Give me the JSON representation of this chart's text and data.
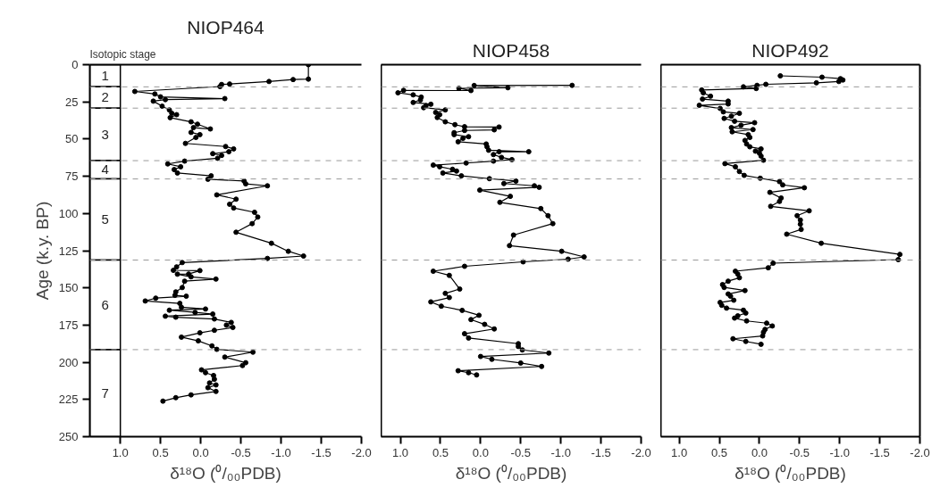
{
  "chart_data": [
    {
      "type": "line",
      "title": "NIOP464",
      "xlabel": "δ¹⁸O (⁰/₀₀PDB)",
      "ylabel": "Age (k.y. BP)",
      "annotations": [
        "Isotopic stage"
      ],
      "xlim": [
        1.38,
        -2.0
      ],
      "ylim": [
        250,
        0
      ],
      "xticks": [
        {
          "value": 1,
          "label": "1.0"
        },
        0.5,
        {
          "value": 0,
          "label": "0.0"
        },
        -0.5,
        {
          "value": -1,
          "label": "-1.0"
        },
        -1.5,
        {
          "value": -2,
          "label": "-2.0"
        }
      ],
      "yticks": [
        0,
        25,
        50,
        75,
        100,
        125,
        150,
        175,
        200,
        225,
        250
      ],
      "marker": "circle",
      "line_style": "solid",
      "series": [
        {
          "color": "#000000",
          "x": [
            -1.34,
            -1.34,
            -1.15,
            -0.85,
            -0.36,
            -0.26,
            -0.24,
            0.82,
            0.57,
            0.5,
            -0.3,
            0.44,
            0.59,
            0.48,
            0.39,
            0.36,
            0.3,
            0.38,
            0.12,
            0.04,
            -0.12,
            0.09,
            0.12,
            0.01,
            0.06,
            0.19,
            -0.31,
            -0.41,
            -0.35,
            -0.15,
            -0.26,
            -0.21,
            0.2,
            0.41,
            0.25,
            0.33,
            0.29,
            -0.13,
            -0.09,
            -0.54,
            -0.56,
            -0.83,
            -0.2,
            -0.44,
            -0.36,
            -0.41,
            -0.67,
            -0.71,
            -0.64,
            -0.44,
            -0.88,
            -1.09,
            -1.28,
            -0.83,
            0.23,
            0.3,
            0.34,
            0.01,
            0.15,
            0.29,
            0.12,
            -0.19,
            0.2,
            0.23,
            0.31,
            0.32,
            0.18,
            0.56,
            0.69,
            0.26,
            0.24,
            -0.06,
            0.39,
            0.07,
            -0.15,
            0.44,
            0.31,
            -0.17,
            -0.38,
            -0.32,
            -0.4,
            -0.17,
            0.01,
            0.24,
            0.03,
            -0.14,
            -0.2,
            -0.65,
            -0.3,
            -0.56,
            -0.52,
            -0.01,
            -0.06,
            -0.16,
            -0.17,
            -0.11,
            -0.19,
            -0.09,
            -0.19,
            0.12,
            0.31,
            0.47
          ],
          "values": [
            0,
            9.7,
            10,
            11.3,
            13,
            13.3,
            14.7,
            18,
            19.7,
            21.6,
            22.8,
            23.5,
            24.5,
            27.9,
            30.4,
            32.7,
            33.6,
            35.6,
            38.4,
            40,
            43.2,
            42.3,
            45.5,
            47,
            48.9,
            52.9,
            55,
            56.6,
            58.5,
            59.8,
            61,
            62.9,
            64.8,
            66.7,
            68.6,
            70.5,
            72.8,
            74.7,
            77,
            78.2,
            80.1,
            81.4,
            87.5,
            90.4,
            93.8,
            96.3,
            99.2,
            102.4,
            106.8,
            112.6,
            120,
            125.4,
            128.6,
            130.2,
            133,
            135.9,
            138.2,
            138.4,
            140.7,
            140.8,
            142.6,
            144.1,
            145.5,
            149.8,
            152.7,
            155,
            155.6,
            156.9,
            158.8,
            160.4,
            163,
            164.2,
            165,
            166.5,
            167.6,
            169,
            169.7,
            170.9,
            173.2,
            175,
            176.6,
            178.5,
            180.2,
            183.1,
            185.6,
            189,
            191.3,
            193.2,
            196.5,
            200.3,
            202.2,
            205.1,
            207,
            208.9,
            211.4,
            213.9,
            215.2,
            217.1,
            219.6,
            221.9,
            223.8,
            226.1
          ]
        }
      ],
      "bands": [
        {
          "axis": "y",
          "from": 0,
          "to": 14.9,
          "label": "1"
        },
        {
          "axis": "y",
          "from": 14.9,
          "to": 29.2,
          "label": "2"
        },
        {
          "axis": "y",
          "from": 29.2,
          "to": 64.5,
          "label": "3"
        },
        {
          "axis": "y",
          "from": 64.5,
          "to": 76.8,
          "label": "4"
        },
        {
          "axis": "y",
          "from": 76.8,
          "to": 131.3,
          "label": "5"
        },
        {
          "axis": "y",
          "from": 131.3,
          "to": 191.5,
          "label": "6"
        },
        {
          "axis": "y",
          "from": 191.5,
          "to": 250,
          "label": "7"
        }
      ],
      "ref_lines": [
        {
          "axis": "y",
          "value": 14.9,
          "color": "#999999",
          "line_style": "dashed"
        },
        {
          "axis": "y",
          "value": 29.2,
          "color": "#999999",
          "line_style": "dashed"
        },
        {
          "axis": "y",
          "value": 64.5,
          "color": "#999999",
          "line_style": "dashed"
        },
        {
          "axis": "y",
          "value": 76.8,
          "color": "#999999",
          "line_style": "dashed"
        },
        {
          "axis": "y",
          "value": 131.3,
          "color": "#999999",
          "line_style": "dashed"
        },
        {
          "axis": "y",
          "value": 191.5,
          "color": "#999999",
          "line_style": "dashed"
        }
      ]
    },
    {
      "type": "line",
      "title": "NIOP458",
      "xlabel": "δ¹⁸O (⁰/₀₀PDB)",
      "tick_labels": "x",
      "xlim": [
        1.24,
        -2.0
      ],
      "ylim": [
        250,
        0
      ],
      "xticks": [
        {
          "value": 1,
          "label": "1.0"
        },
        0.5,
        {
          "value": 0,
          "label": "0.0"
        },
        -0.5,
        {
          "value": -1,
          "label": "-1.0"
        },
        -1.5,
        {
          "value": -2,
          "label": "-2.0"
        }
      ],
      "yticks": [
        0,
        25,
        50,
        75,
        100,
        125,
        150,
        175,
        200,
        225,
        250
      ],
      "marker": "circle",
      "line_style": "solid",
      "series": [
        {
          "color": "#000000",
          "x": [
            -1.14,
            0.08,
            -0.34,
            0.27,
            0.12,
            0.96,
            1.03,
            0.84,
            0.74,
            0.75,
            0.84,
            0.62,
            0.68,
            0.71,
            0.44,
            0.56,
            0.51,
            0.54,
            0.44,
            0.32,
            0.2,
            -0.23,
            -0.17,
            0.2,
            0.33,
            0.33,
            0.15,
            0.22,
            0.28,
            -0.07,
            -0.08,
            -0.1,
            -0.6,
            -0.23,
            -0.16,
            -0.26,
            -0.39,
            -0.16,
            0.18,
            0.59,
            0.51,
            0.35,
            0.3,
            0.47,
            0.24,
            -0.11,
            -0.44,
            -0.29,
            -0.67,
            -0.73,
            0.01,
            -0.37,
            -0.24,
            -0.75,
            -0.84,
            -0.9,
            -0.41,
            -0.36,
            -1.01,
            -1.29,
            -1.09,
            -0.53,
            0.2,
            0.59,
            0.39,
            0.26,
            0.44,
            0.39,
            0.62,
            0.49,
            0.23,
            0.02,
            0.12,
            -0.05,
            -0.17,
            0.2,
            0.15,
            -0.47,
            -0.47,
            -0.52,
            -0.85,
            0.0,
            -0.14,
            -0.5,
            -0.76,
            0.28,
            0.15,
            0.05
          ],
          "values": [
            13.9,
            14,
            15.5,
            15.9,
            17.4,
            17.3,
            18.9,
            20.3,
            21.8,
            23.7,
            25.4,
            26.6,
            27.5,
            28.9,
            30.4,
            32.1,
            33.6,
            35.5,
            38.4,
            40.3,
            41.7,
            41.9,
            43.8,
            44.2,
            45.7,
            47,
            48.4,
            49.5,
            51.8,
            53.3,
            55.2,
            57.5,
            58.5,
            58.5,
            60.4,
            62.3,
            63.8,
            64.8,
            66.1,
            67.5,
            68.6,
            70.3,
            71.5,
            72.8,
            74.7,
            76.6,
            78.2,
            79.9,
            81.4,
            82.4,
            84.3,
            88.5,
            92.5,
            96.7,
            101.5,
            106.8,
            114.5,
            121.6,
            125.4,
            129.2,
            130.7,
            132.5,
            135.5,
            138.8,
            141.6,
            150.8,
            153.7,
            156.5,
            159.4,
            162.3,
            165.1,
            168.4,
            171.3,
            174.5,
            177.6,
            180.8,
            183.7,
            187.5,
            189.4,
            191.7,
            193.8,
            196.1,
            198,
            200.5,
            202.8,
            205.7,
            207,
            208.5
          ]
        }
      ],
      "ref_lines": [
        {
          "axis": "y",
          "value": 14.9,
          "color": "#999999",
          "line_style": "dashed"
        },
        {
          "axis": "y",
          "value": 29.2,
          "color": "#999999",
          "line_style": "dashed"
        },
        {
          "axis": "y",
          "value": 64.5,
          "color": "#999999",
          "line_style": "dashed"
        },
        {
          "axis": "y",
          "value": 76.8,
          "color": "#999999",
          "line_style": "dashed"
        },
        {
          "axis": "y",
          "value": 131.3,
          "color": "#999999",
          "line_style": "dashed"
        },
        {
          "axis": "y",
          "value": 191.5,
          "color": "#999999",
          "line_style": "dashed"
        }
      ]
    },
    {
      "type": "line",
      "title": "NIOP492",
      "xlabel": "δ¹⁸O (⁰/₀₀PDB)",
      "tick_labels": "x",
      "xlim": [
        1.23,
        -2.0
      ],
      "ylim": [
        250,
        0
      ],
      "xticks": [
        {
          "value": 1,
          "label": "1.0"
        },
        0.5,
        {
          "value": 0,
          "label": "0.0"
        },
        -0.5,
        {
          "value": -1,
          "label": "-1.0"
        },
        -1.5,
        {
          "value": -2,
          "label": "-2.0"
        }
      ],
      "yticks": [
        0,
        25,
        50,
        75,
        100,
        125,
        150,
        175,
        200,
        225,
        250
      ],
      "marker": "circle",
      "line_style": "solid",
      "series": [
        {
          "color": "#000000",
          "x": [
            -0.26,
            -0.78,
            -1.01,
            -1.04,
            -0.99,
            -0.71,
            -0.08,
            0.03,
            0.2,
            0.04,
            0.72,
            0.7,
            0.61,
            0.71,
            0.39,
            0.39,
            0.75,
            0.49,
            0.45,
            0.25,
            0.35,
            0.44,
            0.31,
            0.06,
            0.23,
            0.35,
            0.08,
            0.34,
            0.14,
            0.12,
            0.18,
            0.16,
            0.12,
            -0.02,
            0.05,
            0.0,
            -0.02,
            -0.05,
            0.43,
            0.3,
            0.25,
            0.19,
            -0.01,
            -0.25,
            -0.29,
            -0.56,
            -0.13,
            -0.27,
            -0.25,
            -0.14,
            -0.62,
            -0.47,
            -0.51,
            -0.51,
            -0.52,
            -0.34,
            -0.77,
            -1.75,
            -1.73,
            -0.17,
            -0.11,
            0.3,
            0.27,
            0.25,
            0.39,
            0.46,
            0.44,
            0.18,
            0.39,
            0.36,
            0.32,
            0.49,
            0.47,
            0.41,
            0.2,
            0.17,
            0.27,
            0.31,
            0.16,
            -0.09,
            -0.16,
            -0.07,
            -0.05,
            -0.04,
            0.33,
            0.17,
            -0.02
          ],
          "values": [
            7.5,
            8.4,
            9.4,
            10.3,
            11.3,
            12.2,
            13.2,
            13.9,
            14.9,
            16,
            17,
            18.9,
            21.2,
            23.1,
            24.5,
            26.4,
            27.3,
            29.4,
            31.7,
            32.7,
            34.6,
            36.1,
            38,
            39,
            40.7,
            42.3,
            43.6,
            45.1,
            47,
            48.9,
            50.9,
            53.3,
            55.2,
            56.6,
            58.1,
            59.5,
            61.4,
            64.2,
            66.5,
            68.6,
            71.8,
            74.4,
            76.3,
            78.6,
            80.8,
            82.7,
            85.8,
            89.6,
            91.9,
            95.2,
            98.2,
            101.5,
            104.4,
            107.2,
            110.7,
            113.9,
            120,
            127.5,
            131,
            133.4,
            136.5,
            138.8,
            140.7,
            143.2,
            145.5,
            147.8,
            149.7,
            151.8,
            154.1,
            155.6,
            158.3,
            159.8,
            161.7,
            163.6,
            165,
            166.9,
            168.8,
            170.3,
            172.2,
            173.7,
            175.6,
            177.9,
            179.8,
            182.3,
            184.2,
            186,
            187.9
          ]
        }
      ],
      "ref_lines": [
        {
          "axis": "y",
          "value": 14.9,
          "color": "#999999",
          "line_style": "dashed"
        },
        {
          "axis": "y",
          "value": 29.2,
          "color": "#999999",
          "line_style": "dashed"
        },
        {
          "axis": "y",
          "value": 64.5,
          "color": "#999999",
          "line_style": "dashed"
        },
        {
          "axis": "y",
          "value": 76.8,
          "color": "#999999",
          "line_style": "dashed"
        },
        {
          "axis": "y",
          "value": 131.3,
          "color": "#999999",
          "line_style": "dashed"
        },
        {
          "axis": "y",
          "value": 191.5,
          "color": "#999999",
          "line_style": "dashed"
        }
      ]
    }
  ]
}
